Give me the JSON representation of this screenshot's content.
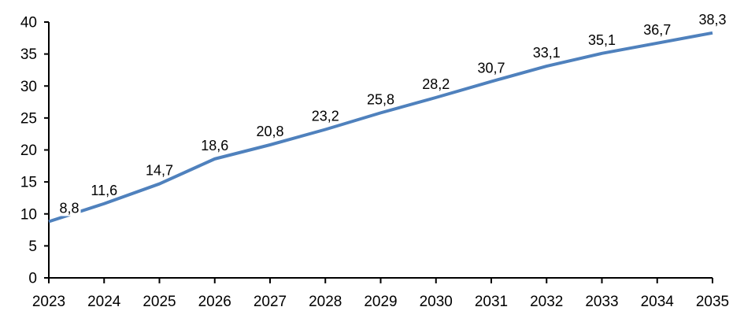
{
  "page": {
    "background": "#FFFFFF"
  },
  "chart_data": {
    "type": "line",
    "title": "",
    "xlabel": "",
    "ylabel": "",
    "categories": [
      "2023",
      "2024",
      "2025",
      "2026",
      "2027",
      "2028",
      "2029",
      "2030",
      "2031",
      "2032",
      "2033",
      "2034",
      "2035"
    ],
    "values": [
      8.8,
      11.6,
      14.7,
      18.6,
      20.8,
      23.2,
      25.8,
      28.2,
      30.7,
      33.1,
      35.1,
      36.7,
      38.3
    ],
    "data_labels": [
      "8,8",
      "11,6",
      "14,7",
      "18,6",
      "20,8",
      "23,2",
      "25,8",
      "28,2",
      "30,7",
      "33,1",
      "35,1",
      "36,7",
      "38,3"
    ],
    "ylim": [
      0,
      40
    ],
    "ytick_step": 5,
    "ytick_labels": [
      "0",
      "5",
      "10",
      "15",
      "20",
      "25",
      "30",
      "35",
      "40"
    ],
    "grid": false,
    "legend": false,
    "markers": false,
    "line_color": "#4F81BD",
    "axis_color": "#000000",
    "label_color": "#000000",
    "layout_hints": {
      "first_label_dx": 26,
      "first_label_bg": "#FFFFFF",
      "data_label_position": "above"
    }
  }
}
